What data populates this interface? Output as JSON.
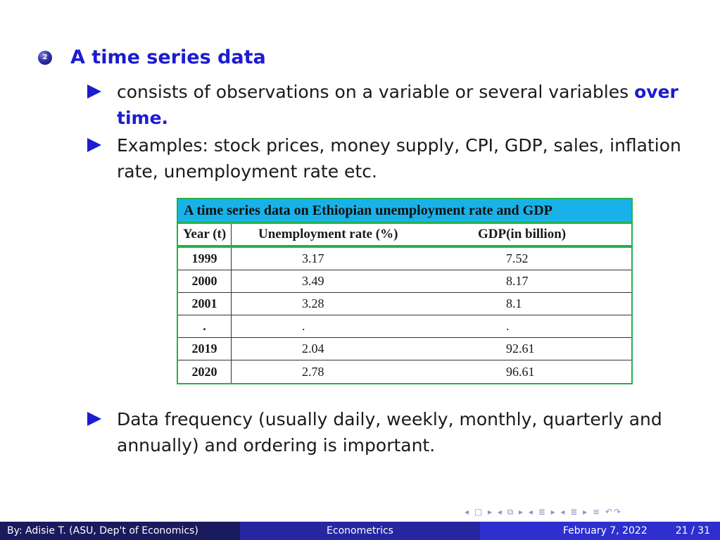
{
  "item": {
    "number": "2",
    "title": "A time series data"
  },
  "bullets": {
    "b1_text": "consists of observations on a variable or several variables ",
    "b1_highlight": "over time.",
    "b2_text": "Examples: stock prices, money supply, CPI, GDP, sales, inflation rate, unemployment rate etc.",
    "b3_text": "Data frequency (usually daily, weekly, monthly, quarterly and annually) and ordering is important."
  },
  "table": {
    "caption": "A time series data on Ethiopian unemployment rate and GDP",
    "headers": [
      "Year (t)",
      "Unemployment rate (%)",
      "GDP(in billion)"
    ],
    "rows": [
      [
        "1999",
        "3.17",
        "7.52"
      ],
      [
        "2000",
        "3.49",
        "8.17"
      ],
      [
        "2001",
        "3.28",
        "8.1"
      ],
      [
        ".",
        ".",
        "."
      ],
      [
        "2019",
        "2.04",
        "92.61"
      ],
      [
        "2020",
        "2.78",
        "96.61"
      ]
    ]
  },
  "footer": {
    "author": "By: Adisie T. (ASU, Dep't of Economics)",
    "course": "Econometrics",
    "date": "February 7, 2022",
    "page": "21 / 31"
  },
  "nav_symbols": "◂ □ ▸ ◂ ⧉ ▸ ◂ ≣ ▸ ◂ ≣ ▸ ≡ ↶↷",
  "colors": {
    "accent": "#1c1cd0",
    "table_border": "#22b14c",
    "table_caption_bg": "#19b2e8"
  }
}
